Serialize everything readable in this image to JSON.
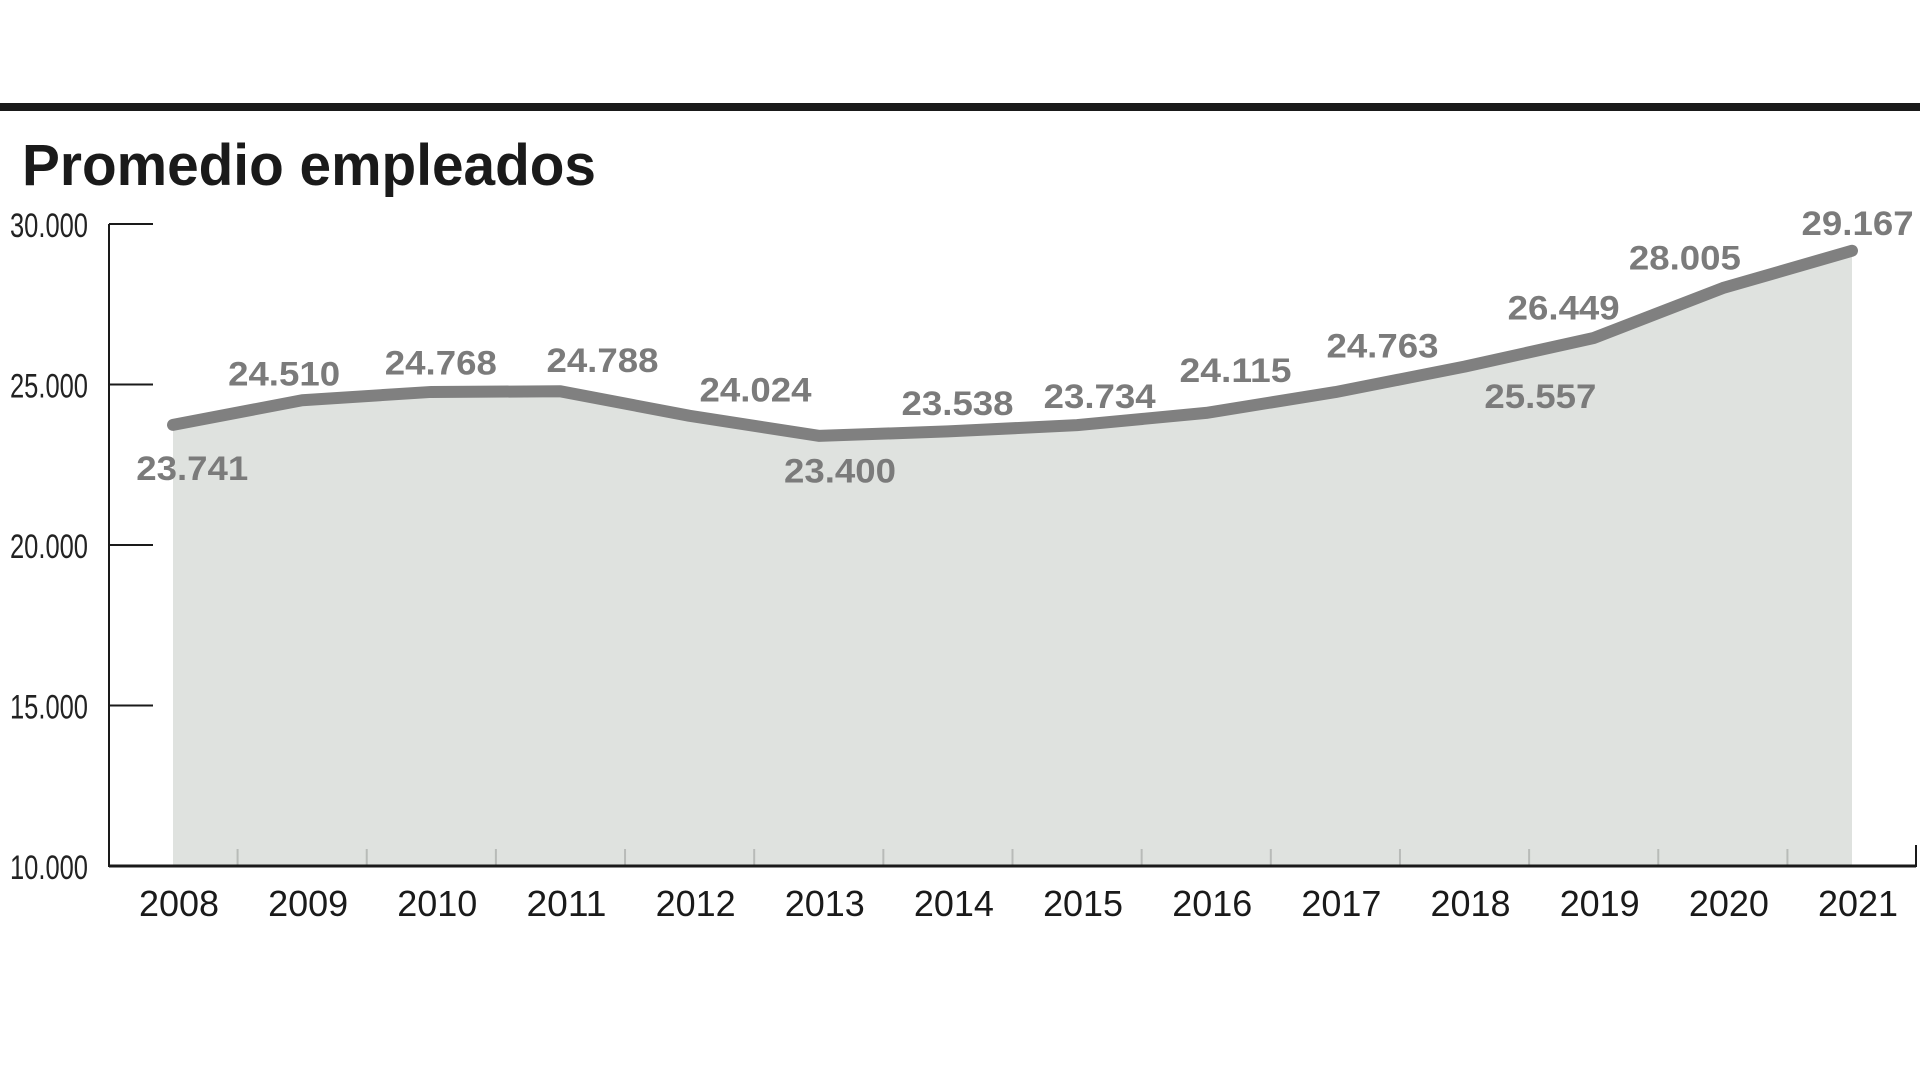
{
  "chart_data": {
    "type": "area",
    "title": "Promedio empleados",
    "categories": [
      "2008",
      "2009",
      "2010",
      "2011",
      "2012",
      "2013",
      "2014",
      "2015",
      "2016",
      "2017",
      "2018",
      "2019",
      "2020",
      "2021"
    ],
    "values": [
      23741,
      24510,
      24768,
      24788,
      24024,
      23400,
      23538,
      23734,
      24115,
      24763,
      25557,
      26449,
      28005,
      29167
    ],
    "value_labels": [
      "23.741",
      "24.510",
      "24.768",
      "24.788",
      "24.024",
      "23.400",
      "23.538",
      "23.734",
      "24.115",
      "24.763",
      "25.557",
      "26.449",
      "28.005",
      "29.167"
    ],
    "ylim": [
      10000,
      30000
    ],
    "yticks": [
      10000,
      15000,
      20000,
      25000,
      30000
    ],
    "ytick_labels": [
      "10.000",
      "15.000",
      "20.000",
      "25.000",
      "30.000"
    ],
    "xlabel": "",
    "ylabel": "",
    "grid": false,
    "colors": {
      "line": "#808080",
      "fill": "#dfe2df",
      "labels": "#7b7b7b",
      "rule": "#1a1a1a"
    }
  }
}
